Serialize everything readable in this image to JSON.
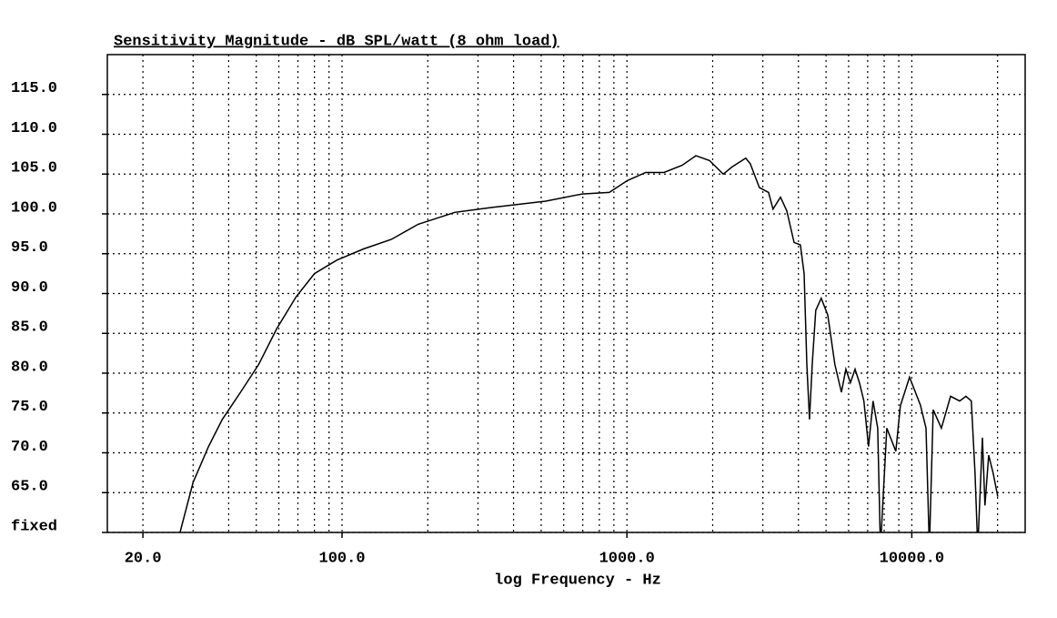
{
  "chart_data": {
    "type": "line",
    "title": "Sensitivity Magnitude - dB SPL/watt (8 ohm load)",
    "xlabel": "log Frequency - Hz",
    "log_x": true,
    "grid": true,
    "color": "#000000",
    "xlim": [
      15,
      25000
    ],
    "ylim": [
      60,
      120
    ],
    "xticks": [
      {
        "value": 20,
        "label": "20.0"
      },
      {
        "value": 100,
        "label": "100.0"
      },
      {
        "value": 1000,
        "label": "1000.0"
      },
      {
        "value": 10000,
        "label": "10000.0"
      }
    ],
    "xgrid": [
      20,
      30,
      40,
      50,
      60,
      70,
      80,
      90,
      100,
      200,
      300,
      400,
      500,
      600,
      700,
      800,
      900,
      1000,
      2000,
      3000,
      4000,
      5000,
      6000,
      7000,
      8000,
      9000,
      10000,
      20000
    ],
    "yticks": [
      {
        "value": 60,
        "label": "fixed"
      },
      {
        "value": 65,
        "label": "65.0"
      },
      {
        "value": 70,
        "label": "70.0"
      },
      {
        "value": 75,
        "label": "75.0"
      },
      {
        "value": 80,
        "label": "80.0"
      },
      {
        "value": 85,
        "label": "85.0"
      },
      {
        "value": 90,
        "label": "90.0"
      },
      {
        "value": 95,
        "label": "95.0"
      },
      {
        "value": 100,
        "label": "100.0"
      },
      {
        "value": 105,
        "label": "105.0"
      },
      {
        "value": 110,
        "label": "110.0"
      },
      {
        "value": 115,
        "label": "115.0"
      }
    ],
    "x": [
      27,
      30,
      34,
      38,
      44,
      51,
      59,
      69,
      80,
      96,
      119,
      149,
      185,
      249,
      334,
      519,
      697,
      867,
      1005,
      1164,
      1349,
      1563,
      1746,
      1950,
      2178,
      2340,
      2612,
      2710,
      2917,
      3141,
      3258,
      3459,
      3640,
      3864,
      4064,
      4188,
      4280,
      4375,
      4470,
      4603,
      4810,
      5070,
      5370,
      5660,
      5870,
      6090,
      6320,
      6550,
      6790,
      7050,
      7310,
      7590,
      7760,
      8170,
      8790,
      9120,
      9820,
      10720,
      11220,
      11530,
      11890,
      12700,
      13680,
      14720,
      15490,
      16180,
      16670,
      17050,
      17690,
      18070,
      18620,
      19320,
      20040
    ],
    "values": [
      60,
      66.3,
      70.8,
      74.2,
      77.6,
      81.1,
      85.6,
      89.6,
      92.5,
      94.2,
      95.6,
      96.8,
      98.7,
      100.2,
      100.8,
      101.6,
      102.5,
      102.7,
      104.2,
      105.2,
      105.2,
      106.1,
      107.3,
      106.7,
      105.0,
      105.9,
      107.0,
      106.3,
      103.3,
      102.7,
      100.6,
      102.1,
      100.4,
      96.4,
      96.1,
      92.5,
      81.1,
      74.2,
      81.1,
      87.9,
      89.4,
      87.3,
      81.1,
      77.6,
      80.5,
      78.8,
      80.5,
      78.8,
      76.5,
      70.8,
      76.5,
      73.1,
      58,
      73.1,
      70.2,
      75.9,
      79.5,
      76,
      73.1,
      58,
      75.4,
      73.1,
      77.1,
      76.5,
      77.1,
      76.5,
      67.4,
      58,
      71.9,
      63.4,
      69.7,
      67.4,
      64.5
    ]
  }
}
